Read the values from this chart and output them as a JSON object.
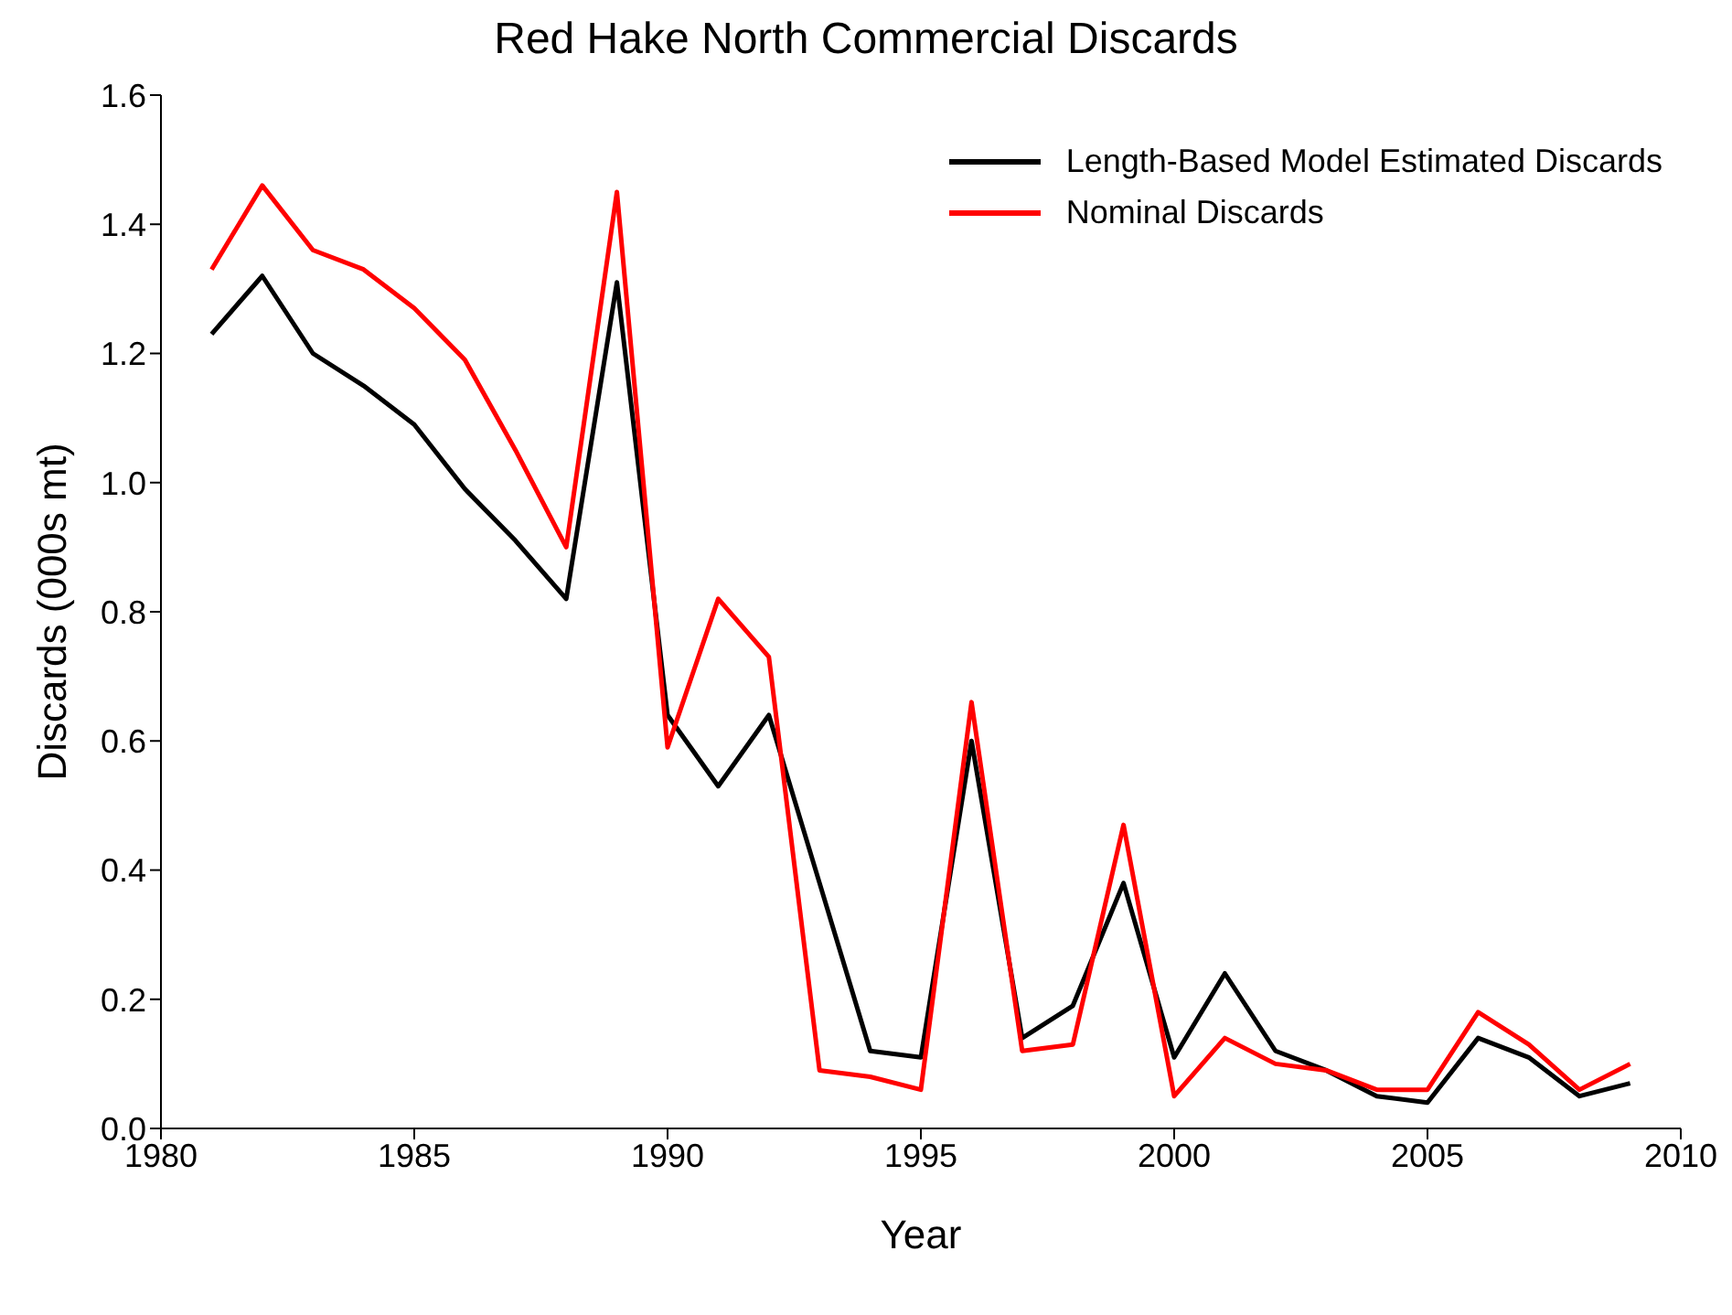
{
  "chart_data": {
    "type": "line",
    "title": "Red Hake North Commercial Discards",
    "xlabel": "Year",
    "ylabel": "Discards (000s mt)",
    "x": [
      1981,
      1982,
      1983,
      1984,
      1985,
      1986,
      1987,
      1988,
      1989,
      1990,
      1991,
      1992,
      1993,
      1994,
      1995,
      1996,
      1997,
      1998,
      1999,
      2000,
      2001,
      2002,
      2003,
      2004,
      2005,
      2006,
      2007,
      2008,
      2009
    ],
    "series": [
      {
        "name": "Length-Based Model Estimated Discards",
        "color": "#000000",
        "values": [
          1.23,
          1.32,
          1.2,
          1.15,
          1.09,
          0.99,
          0.91,
          0.82,
          1.31,
          0.64,
          0.53,
          0.64,
          0.38,
          0.12,
          0.11,
          0.6,
          0.14,
          0.19,
          0.38,
          0.11,
          0.24,
          0.12,
          0.09,
          0.05,
          0.04,
          0.14,
          0.11,
          0.05,
          0.07
        ]
      },
      {
        "name": "Nominal Discards",
        "color": "#ff0000",
        "values": [
          1.33,
          1.46,
          1.36,
          1.33,
          1.27,
          1.19,
          1.05,
          0.9,
          1.45,
          0.59,
          0.82,
          0.73,
          0.09,
          0.08,
          0.06,
          0.66,
          0.12,
          0.13,
          0.47,
          0.05,
          0.14,
          0.1,
          0.09,
          0.06,
          0.06,
          0.18,
          0.13,
          0.06,
          0.1
        ]
      }
    ],
    "xlim": [
      1980,
      2010
    ],
    "xticks": [
      1980,
      1985,
      1990,
      1995,
      2000,
      2005,
      2010
    ],
    "ylim": [
      0,
      1.6
    ],
    "yticks": [
      {
        "value": 0,
        "label": "0.0"
      },
      {
        "value": 0.2,
        "label": "0.2"
      },
      {
        "value": 0.4,
        "label": "0.4"
      },
      {
        "value": 0.6,
        "label": "0.6"
      },
      {
        "value": 0.8,
        "label": "0.8"
      },
      {
        "value": 1,
        "label": "1.0"
      },
      {
        "value": 1.2,
        "label": "1.2"
      },
      {
        "value": 1.4,
        "label": "1.4"
      },
      {
        "value": 1.6,
        "label": "1.6"
      }
    ],
    "grid": false,
    "legend": "top right",
    "marker": "none",
    "line_style": "solid"
  }
}
